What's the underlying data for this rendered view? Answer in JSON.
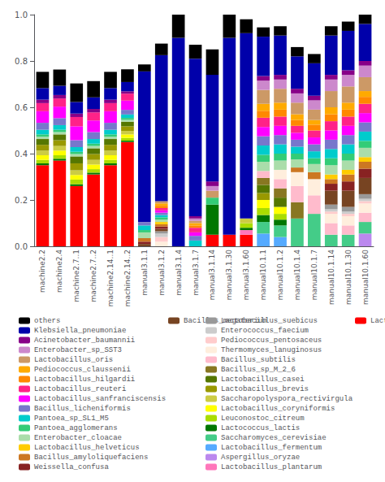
{
  "chart_data": {
    "type": "bar",
    "stacked": true,
    "grid": false,
    "legend": "bottom",
    "categories": [
      "machine2.2",
      "machine2.4",
      "machine2.7..1",
      "machine2.7..2",
      "machine2.14..1",
      "machine2.14..2",
      "manual3.1.1",
      "manual3.1.2",
      "manual3.1.4",
      "manual3.1.7",
      "manual3.1.14",
      "manual3.1.30",
      "manual3.1.60",
      "manual10.1.1",
      "manual10.1.2",
      "manual10.1.4",
      "manual10.1.7",
      "manual10.1.14",
      "manual10.1.30",
      "manual10.1.60"
    ],
    "ylim": [
      0,
      1.0
    ],
    "yticks": [
      {
        "value": 0,
        "label": "0.0"
      },
      {
        "value": 0.2,
        "label": "0.2"
      },
      {
        "value": 0.4,
        "label": "0.4"
      },
      {
        "value": 0.6,
        "label": "0.6"
      },
      {
        "value": 0.8,
        "label": "0.8"
      },
      {
        "value": 1.0,
        "label": "1.0"
      }
    ],
    "series": [
      {
        "name": "Lactobacillus_curvatus",
        "color": "#ff0000",
        "values": [
          0.35,
          0.37,
          0.26,
          0.31,
          0.35,
          0.45,
          0.0,
          0.0,
          0.0,
          0.0,
          0.05,
          0.05,
          0.05,
          0.0,
          0.0,
          0.0,
          0.0,
          0.0,
          0.0,
          0.0
        ]
      },
      {
        "name": "Lactobacillus_plantarum",
        "color": "#ff77bb",
        "values": [
          0.0,
          0.0,
          0.0,
          0.0,
          0.0,
          0.0,
          0.0,
          0.0,
          0.0,
          0.0,
          0.0,
          0.0,
          0.02,
          0.0,
          0.0,
          0.0,
          0.0,
          0.0,
          0.0,
          0.0
        ]
      },
      {
        "name": "Aspergillus_oryzae",
        "color": "#bb88ee",
        "values": [
          0.0,
          0.0,
          0.0,
          0.0,
          0.0,
          0.0,
          0.0,
          0.0,
          0.0,
          0.0,
          0.0,
          0.0,
          0.0,
          0.0,
          0.0,
          0.0,
          0.0,
          0.0,
          0.0,
          0.055
        ]
      },
      {
        "name": "Lactobacillus_fermentum",
        "color": "#55aaff",
        "values": [
          0.0,
          0.0,
          0.0,
          0.0,
          0.0,
          0.0,
          0.0,
          0.0,
          0.0,
          0.0,
          0.0,
          0.0,
          0.0,
          0.055,
          0.04,
          0.0,
          0.0,
          0.0,
          0.0,
          0.0
        ]
      },
      {
        "name": "Saccharomyces_cerevisiae",
        "color": "#44cc88",
        "values": [
          0.0,
          0.0,
          0.0,
          0.0,
          0.0,
          0.0,
          0.0,
          0.0,
          0.0,
          0.0,
          0.0,
          0.0,
          0.0,
          0.05,
          0.05,
          0.12,
          0.14,
          0.05,
          0.05,
          0.05
        ]
      },
      {
        "name": "Lactococcus_lactis",
        "color": "#007700",
        "values": [
          0.008,
          0.008,
          0.008,
          0.008,
          0.008,
          0.006,
          0.0,
          0.0,
          0.0,
          0.0,
          0.13,
          0.0,
          0.01,
          0.03,
          0.025,
          0.0,
          0.0,
          0.0,
          0.0,
          0.0
        ]
      },
      {
        "name": "Leuconostoc_citreum",
        "color": "#aadd00",
        "values": [
          0.015,
          0.015,
          0.02,
          0.015,
          0.015,
          0.012,
          0.0,
          0.0,
          0.0,
          0.0,
          0.0,
          0.0,
          0.02,
          0.03,
          0.025,
          0.0,
          0.0,
          0.0,
          0.0,
          0.0
        ]
      },
      {
        "name": "Lactobacillus_coryniformis",
        "color": "#ffff00",
        "values": [
          0.02,
          0.02,
          0.02,
          0.02,
          0.02,
          0.015,
          0.0,
          0.0,
          0.0,
          0.0,
          0.0,
          0.0,
          0.0,
          0.035,
          0.03,
          0.0,
          0.0,
          0.0,
          0.0,
          0.0
        ]
      },
      {
        "name": "Saccharopolyspora_rectivirgula",
        "color": "#cccc44",
        "values": [
          0.02,
          0.02,
          0.02,
          0.02,
          0.02,
          0.015,
          0.0,
          0.0,
          0.0,
          0.0,
          0.0,
          0.0,
          0.02,
          0.0,
          0.0,
          0.0,
          0.0,
          0.0,
          0.0,
          0.0
        ]
      },
      {
        "name": "Lactobacillus_brevis",
        "color": "#999900",
        "values": [
          0.025,
          0.025,
          0.03,
          0.025,
          0.025,
          0.02,
          0.0,
          0.0,
          0.0,
          0.0,
          0.0,
          0.0,
          0.0,
          0.03,
          0.0,
          0.0,
          0.0,
          0.0,
          0.0,
          0.0
        ]
      },
      {
        "name": "Lactobacillus_casei",
        "color": "#557700",
        "values": [
          0.025,
          0.025,
          0.03,
          0.025,
          0.025,
          0.02,
          0.0,
          0.0,
          0.0,
          0.0,
          0.0,
          0.0,
          0.0,
          0.035,
          0.04,
          0.0,
          0.0,
          0.0,
          0.0,
          0.0
        ]
      },
      {
        "name": "Bacillus_sp_M_2_6",
        "color": "#887722",
        "values": [
          0.0,
          0.0,
          0.0,
          0.0,
          0.0,
          0.0,
          0.0,
          0.0,
          0.0,
          0.0,
          0.0,
          0.0,
          0.0,
          0.03,
          0.04,
          0.07,
          0.0,
          0.0,
          0.0,
          0.0
        ]
      },
      {
        "name": "Bacillus_subtilis",
        "color": "#ffbbcc",
        "values": [
          0.0,
          0.0,
          0.0,
          0.0,
          0.0,
          0.0,
          0.0,
          0.0,
          0.0,
          0.0,
          0.0,
          0.0,
          0.0,
          0.03,
          0.04,
          0.07,
          0.08,
          0.05,
          0.04,
          0.04
        ]
      },
      {
        "name": "Thermomyces_lanuginosus",
        "color": "#ffeedd",
        "values": [
          0.0,
          0.0,
          0.0,
          0.0,
          0.0,
          0.0,
          0.0,
          0.02,
          0.0,
          0.0,
          0.0,
          0.0,
          0.0,
          0.0,
          0.04,
          0.06,
          0.07,
          0.04,
          0.04,
          0.04
        ]
      },
      {
        "name": "Pediococcus_pentosaceus",
        "color": "#ffcccc",
        "values": [
          0.0,
          0.0,
          0.0,
          0.0,
          0.0,
          0.0,
          0.0,
          0.02,
          0.0,
          0.0,
          0.0,
          0.0,
          0.0,
          0.0,
          0.0,
          0.0,
          0.0,
          0.01,
          0.01,
          0.01
        ]
      },
      {
        "name": "Enterococcus_faecium",
        "color": "#cccccc",
        "values": [
          0.0,
          0.0,
          0.0,
          0.0,
          0.0,
          0.0,
          0.0,
          0.015,
          0.0,
          0.0,
          0.0,
          0.0,
          0.0,
          0.0,
          0.0,
          0.0,
          0.0,
          0.01,
          0.01,
          0.01
        ]
      },
      {
        "name": "Lactobacillus_suebicus",
        "color": "#999999",
        "values": [
          0.0,
          0.0,
          0.0,
          0.0,
          0.0,
          0.0,
          0.0,
          0.01,
          0.0,
          0.0,
          0.0,
          0.0,
          0.0,
          0.0,
          0.0,
          0.0,
          0.0,
          0.02,
          0.02,
          0.02
        ]
      },
      {
        "name": "Bacillus_megaterium",
        "color": "#774422",
        "values": [
          0.0,
          0.0,
          0.0,
          0.0,
          0.0,
          0.0,
          0.01,
          0.01,
          0.0,
          0.0,
          0.0,
          0.0,
          0.0,
          0.0,
          0.0,
          0.0,
          0.0,
          0.06,
          0.07,
          0.07
        ]
      },
      {
        "name": "Weissella_confusa",
        "color": "#882222",
        "values": [
          0.0,
          0.0,
          0.0,
          0.0,
          0.0,
          0.0,
          0.01,
          0.01,
          0.0,
          0.0,
          0.0,
          0.0,
          0.0,
          0.0,
          0.0,
          0.0,
          0.0,
          0.03,
          0.04,
          0.04
        ]
      },
      {
        "name": "Bacillus_amyloliquefaciens",
        "color": "#cc7722",
        "values": [
          0.0,
          0.0,
          0.0,
          0.0,
          0.0,
          0.0,
          0.015,
          0.01,
          0.0,
          0.0,
          0.0,
          0.0,
          0.0,
          0.0,
          0.0,
          0.02,
          0.03,
          0.02,
          0.03,
          0.03
        ]
      },
      {
        "name": "Lactobacillus_helveticus",
        "color": "#ffcc00",
        "values": [
          0.0,
          0.0,
          0.0,
          0.0,
          0.0,
          0.0,
          0.0,
          0.01,
          0.0,
          0.0,
          0.0,
          0.0,
          0.0,
          0.0,
          0.0,
          0.0,
          0.0,
          0.02,
          0.02,
          0.02
        ]
      },
      {
        "name": "Enterobacter_cloacae",
        "color": "#aaddaa",
        "values": [
          0.01,
          0.01,
          0.01,
          0.01,
          0.01,
          0.008,
          0.025,
          0.01,
          0.0,
          0.0,
          0.0,
          0.0,
          0.0,
          0.04,
          0.04,
          0.035,
          0.035,
          0.04,
          0.04,
          0.04
        ]
      },
      {
        "name": "Pantoea_agglomerans",
        "color": "#33cc77",
        "values": [
          0.01,
          0.01,
          0.01,
          0.01,
          0.01,
          0.008,
          0.01,
          0.01,
          0.0,
          0.0,
          0.03,
          0.0,
          0.0,
          0.03,
          0.03,
          0.025,
          0.025,
          0.03,
          0.03,
          0.03
        ]
      },
      {
        "name": "Pantoea_sp_SL1_M5",
        "color": "#00cccc",
        "values": [
          0.02,
          0.02,
          0.02,
          0.02,
          0.02,
          0.015,
          0.02,
          0.01,
          0.0,
          0.025,
          0.0,
          0.0,
          0.0,
          0.04,
          0.04,
          0.03,
          0.03,
          0.04,
          0.04,
          0.04
        ]
      },
      {
        "name": "Bacillus_licheniformis",
        "color": "#7777cc",
        "values": [
          0.03,
          0.03,
          0.03,
          0.03,
          0.03,
          0.02,
          0.015,
          0.01,
          0.0,
          0.02,
          0.0,
          0.0,
          0.0,
          0.04,
          0.04,
          0.03,
          0.03,
          0.04,
          0.04,
          0.04
        ]
      },
      {
        "name": "Lactobacillus_sanfranciscensis",
        "color": "#ff00ff",
        "values": [
          0.05,
          0.05,
          0.06,
          0.05,
          0.05,
          0.04,
          0.0,
          0.01,
          0.0,
          0.015,
          0.0,
          0.0,
          0.0,
          0.04,
          0.04,
          0.03,
          0.03,
          0.04,
          0.04,
          0.04
        ]
      },
      {
        "name": "Lactobacillus_reuteri",
        "color": "#ff2288",
        "values": [
          0.035,
          0.035,
          0.04,
          0.035,
          0.035,
          0.03,
          0.0,
          0.01,
          0.0,
          0.02,
          0.0,
          0.0,
          0.0,
          0.04,
          0.04,
          0.03,
          0.03,
          0.04,
          0.04,
          0.04
        ]
      },
      {
        "name": "Lactobacillus_hilgardii",
        "color": "#ff8800",
        "values": [
          0.0,
          0.0,
          0.0,
          0.0,
          0.0,
          0.0,
          0.0,
          0.01,
          0.0,
          0.01,
          0.0,
          0.0,
          0.0,
          0.03,
          0.03,
          0.025,
          0.025,
          0.03,
          0.03,
          0.03
        ]
      },
      {
        "name": "Pediococcus_claussenii",
        "color": "#ffaa00",
        "values": [
          0.0,
          0.0,
          0.0,
          0.0,
          0.0,
          0.0,
          0.0,
          0.01,
          0.0,
          0.01,
          0.0,
          0.0,
          0.0,
          0.03,
          0.03,
          0.025,
          0.02,
          0.03,
          0.03,
          0.025
        ]
      },
      {
        "name": "Lactobacillus_oris",
        "color": "#cc9966",
        "values": [
          0.0,
          0.0,
          0.0,
          0.0,
          0.0,
          0.0,
          0.0,
          0.01,
          0.0,
          0.01,
          0.03,
          0.0,
          0.0,
          0.06,
          0.06,
          0.05,
          0.045,
          0.07,
          0.07,
          0.06
        ]
      },
      {
        "name": "Enterobacter_sp_SST3",
        "color": "#cc88cc",
        "values": [
          0.0,
          0.0,
          0.0,
          0.0,
          0.0,
          0.0,
          0.0,
          0.0,
          0.0,
          0.01,
          0.02,
          0.0,
          0.0,
          0.04,
          0.04,
          0.04,
          0.04,
          0.05,
          0.05,
          0.05
        ]
      },
      {
        "name": "Acinetobacter_baumannii",
        "color": "#880088",
        "values": [
          0.015,
          0.015,
          0.015,
          0.015,
          0.015,
          0.01,
          0.0,
          0.0,
          0.0,
          0.01,
          0.02,
          0.0,
          0.0,
          0.02,
          0.02,
          0.02,
          0.02,
          0.02,
          0.02,
          0.02
        ]
      },
      {
        "name": "Klebsiella_pneumoniae",
        "color": "#0000aa",
        "values": [
          0.05,
          0.04,
          0.05,
          0.05,
          0.05,
          0.04,
          0.65,
          0.63,
          0.9,
          0.68,
          0.46,
          0.85,
          0.8,
          0.17,
          0.17,
          0.14,
          0.14,
          0.17,
          0.17,
          0.16
        ]
      },
      {
        "name": "others",
        "color": "#000000",
        "values": [
          0.07,
          0.07,
          0.08,
          0.07,
          0.07,
          0.055,
          0.03,
          0.05,
          0.1,
          0.06,
          0.11,
          0.1,
          0.06,
          0.04,
          0.04,
          0.04,
          0.04,
          0.04,
          0.04,
          0.04
        ]
      }
    ]
  }
}
